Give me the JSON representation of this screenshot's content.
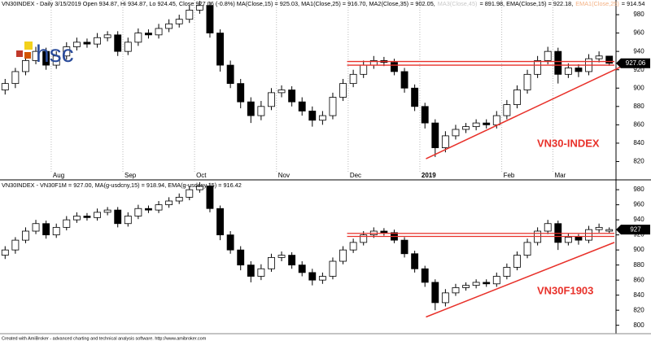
{
  "chart_data": [
    {
      "type": "candlestick",
      "header": [
        {
          "text": "VN30INDEX - Daily 3/15/2019 Open 934.87, Hi 934.87, Lo 924.45, Close 927.06 (-0.8%) MA(Close,15) = 925.03, MA1(Close,25) = 916.70, MA2(Close,35) = 902.05,",
          "color": "#000000"
        },
        {
          "text": "MA3(Close,45)",
          "color": "#c8c8c8"
        },
        {
          "text": "= 891.98, EMA(Close,15) = 922.18,",
          "color": "#000000"
        },
        {
          "text": "EMA1(Close,25)",
          "color": "#f4b183"
        },
        {
          "text": "= 914.54",
          "color": "#000000"
        }
      ],
      "logo": "hsc",
      "label": "VN30-INDEX",
      "categories": [
        null,
        null,
        null,
        null,
        null,
        "Aug",
        null,
        null,
        null,
        null,
        null,
        null,
        "Sep",
        null,
        null,
        null,
        null,
        null,
        null,
        "Oct",
        null,
        null,
        null,
        null,
        null,
        null,
        null,
        "Nov",
        null,
        null,
        null,
        null,
        null,
        null,
        "Dec",
        null,
        null,
        null,
        null,
        null,
        null,
        "2019",
        null,
        null,
        null,
        null,
        null,
        null,
        null,
        "Feb",
        null,
        null,
        null,
        null,
        "Mar",
        null,
        null,
        null,
        null,
        null
      ],
      "open": [
        898,
        905,
        918,
        930,
        940,
        925,
        935,
        945,
        950,
        948,
        955,
        958,
        940,
        950,
        960,
        958,
        965,
        970,
        975,
        985,
        990,
        960,
        925,
        905,
        885,
        870,
        880,
        895,
        898,
        885,
        875,
        865,
        870,
        890,
        905,
        915,
        925,
        930,
        928,
        918,
        900,
        880,
        862,
        835,
        848,
        855,
        858,
        862,
        860,
        870,
        882,
        898,
        915,
        930,
        940,
        915,
        922,
        918,
        932,
        934.87
      ],
      "high": [
        910,
        922,
        935,
        945,
        944,
        940,
        950,
        955,
        954,
        960,
        962,
        962,
        955,
        965,
        964,
        970,
        975,
        980,
        990,
        995,
        994,
        964,
        930,
        910,
        890,
        886,
        900,
        903,
        902,
        890,
        880,
        875,
        895,
        910,
        920,
        930,
        935,
        934,
        932,
        922,
        904,
        884,
        866,
        853,
        860,
        862,
        866,
        866,
        875,
        887,
        903,
        920,
        935,
        945,
        944,
        927,
        926,
        937,
        940,
        934.87
      ],
      "low": [
        893,
        900,
        914,
        926,
        920,
        921,
        931,
        941,
        944,
        944,
        951,
        935,
        936,
        946,
        954,
        954,
        961,
        966,
        971,
        981,
        955,
        918,
        900,
        878,
        862,
        865,
        876,
        890,
        880,
        870,
        858,
        860,
        866,
        886,
        901,
        911,
        921,
        924,
        914,
        895,
        875,
        856,
        825,
        830,
        844,
        851,
        854,
        856,
        856,
        866,
        878,
        894,
        911,
        926,
        905,
        911,
        912,
        914,
        928,
        924.45
      ],
      "close": [
        905,
        918,
        930,
        940,
        925,
        935,
        945,
        950,
        948,
        955,
        958,
        940,
        950,
        960,
        958,
        965,
        970,
        975,
        985,
        990,
        960,
        925,
        905,
        885,
        870,
        880,
        895,
        898,
        885,
        875,
        865,
        870,
        890,
        905,
        915,
        925,
        930,
        928,
        918,
        900,
        880,
        862,
        835,
        848,
        855,
        858,
        862,
        860,
        870,
        882,
        898,
        915,
        930,
        940,
        915,
        922,
        918,
        932,
        935,
        927.06
      ],
      "up_color": "#ffffff",
      "down_color": "#000000",
      "resistance": [
        929,
        925
      ],
      "resistance_color": "#e8312a",
      "trendline": {
        "x": [
          41.6,
          60.6
        ],
        "y": [
          823,
          923
        ],
        "color": "#e8312a"
      },
      "ylim": [
        808,
        996
      ],
      "yticks": [
        820,
        840,
        860,
        880,
        900,
        920,
        940,
        960,
        980
      ]
    },
    {
      "type": "candlestick",
      "header": [
        {
          "text": "VN30INDEX - VN30F1M = 927.00, MA(g-usdcny,15) = 918.94, EMA(g-usdcny,15) = 916.42",
          "color": "#000000"
        }
      ],
      "label": "VN30F1903",
      "categories": [
        null,
        null,
        null,
        null,
        null,
        null,
        null,
        null,
        null,
        null,
        null,
        null,
        null,
        null,
        null,
        null,
        null,
        null,
        null,
        null,
        null,
        null,
        null,
        null,
        null,
        null,
        null,
        null,
        null,
        null,
        null,
        null,
        null,
        null,
        null,
        null,
        null,
        null,
        null,
        null,
        null,
        null,
        null,
        null,
        null,
        null,
        null,
        null,
        null,
        null,
        null,
        null,
        null,
        null,
        null,
        null,
        null,
        null,
        null,
        null
      ],
      "open": [
        893,
        900,
        913,
        925,
        935,
        920,
        930,
        940,
        945,
        943,
        950,
        953,
        935,
        945,
        955,
        953,
        960,
        965,
        970,
        980,
        985,
        955,
        920,
        900,
        880,
        865,
        875,
        890,
        893,
        880,
        870,
        860,
        865,
        885,
        900,
        910,
        920,
        925,
        923,
        913,
        895,
        875,
        857,
        830,
        843,
        850,
        853,
        857,
        855,
        865,
        877,
        893,
        910,
        925,
        935,
        910,
        917,
        913,
        927,
        925
      ],
      "high": [
        905,
        917,
        930,
        940,
        939,
        935,
        945,
        950,
        949,
        955,
        957,
        957,
        950,
        960,
        959,
        965,
        970,
        975,
        985,
        990,
        989,
        959,
        925,
        905,
        885,
        881,
        895,
        898,
        897,
        885,
        875,
        870,
        890,
        905,
        915,
        925,
        930,
        929,
        927,
        917,
        899,
        879,
        861,
        848,
        855,
        857,
        861,
        861,
        870,
        882,
        898,
        915,
        930,
        940,
        939,
        922,
        921,
        932,
        935,
        930
      ],
      "low": [
        888,
        895,
        909,
        921,
        915,
        916,
        926,
        936,
        939,
        939,
        946,
        930,
        931,
        941,
        949,
        949,
        956,
        961,
        966,
        976,
        950,
        913,
        895,
        873,
        857,
        860,
        871,
        885,
        875,
        865,
        853,
        855,
        861,
        881,
        896,
        906,
        916,
        919,
        909,
        890,
        870,
        851,
        820,
        825,
        839,
        846,
        849,
        851,
        851,
        861,
        873,
        889,
        906,
        921,
        900,
        906,
        907,
        909,
        923,
        922
      ],
      "close": [
        900,
        913,
        925,
        935,
        920,
        930,
        940,
        945,
        943,
        950,
        953,
        935,
        945,
        955,
        953,
        960,
        965,
        970,
        980,
        985,
        955,
        920,
        900,
        880,
        865,
        875,
        890,
        893,
        880,
        870,
        860,
        865,
        885,
        900,
        910,
        920,
        925,
        923,
        913,
        895,
        875,
        857,
        830,
        843,
        850,
        853,
        857,
        855,
        865,
        877,
        893,
        910,
        925,
        935,
        910,
        917,
        913,
        927,
        930,
        927
      ],
      "up_color": "#ffffff",
      "down_color": "#000000",
      "resistance": [
        922,
        918
      ],
      "resistance_color": "#e8312a",
      "trendline": {
        "x": [
          41.6,
          60
        ],
        "y": [
          811,
          910
        ],
        "color": "#e8312a"
      },
      "ylim": [
        791,
        992
      ],
      "yticks": [
        800,
        820,
        840,
        860,
        880,
        900,
        920,
        940,
        960,
        980
      ]
    }
  ],
  "footer": "Created with AmiBroker - advanced charting and technical analysis software. http://www.amibroker.com"
}
